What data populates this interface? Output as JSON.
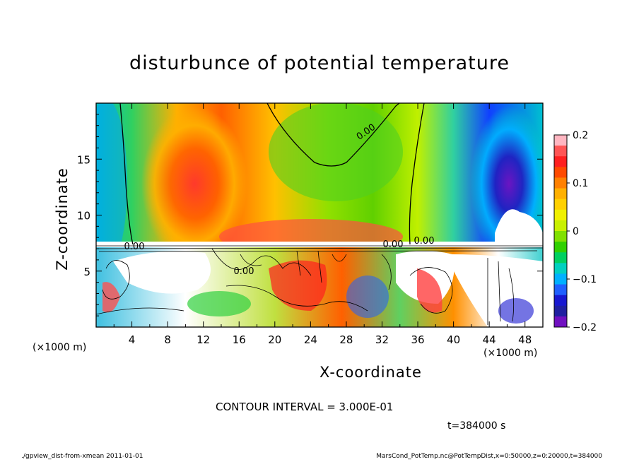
{
  "chart_data": {
    "type": "heatmap",
    "title": "disturbunce of potential temperature",
    "xlabel": "X-coordinate",
    "ylabel": "Z-coordinate",
    "x_unit_left": "(×1000 m)",
    "x_unit_right": "(×1000 m)",
    "xlim": [
      0,
      50
    ],
    "ylim": [
      0,
      20
    ],
    "xticks": [
      4,
      8,
      12,
      16,
      20,
      24,
      28,
      32,
      36,
      40,
      44,
      48
    ],
    "xtick_labels": [
      "4",
      "8",
      "12",
      "16",
      "20",
      "24",
      "28",
      "32",
      "36",
      "40",
      "44",
      "48"
    ],
    "yticks": [
      5,
      10,
      15
    ],
    "ytick_labels": [
      "5",
      "10",
      "15"
    ],
    "colorbar": {
      "range": [
        -0.2,
        0.2
      ],
      "ticks": [
        0.2,
        0.1,
        0,
        -0.1,
        -0.2
      ],
      "tick_labels": [
        "0.2",
        "0.1",
        "0",
        "−0.1",
        "−0.2"
      ],
      "colors": [
        "#ffb6c1",
        "#ff5555",
        "#ff2020",
        "#ff4a00",
        "#ff8000",
        "#ffb000",
        "#ffd000",
        "#f0f000",
        "#c8f000",
        "#80e000",
        "#30d000",
        "#00d060",
        "#00d0c0",
        "#00b0ff",
        "#2060ff",
        "#1818d0",
        "#2020a0",
        "#7010c0"
      ]
    },
    "contour_labels": [
      "0.00",
      "0.00",
      "0.00",
      "0.00",
      "0.00"
    ],
    "contour_interval": "CONTOUR INTERVAL = 3.000E-01",
    "time": "t=384000 s"
  },
  "footer": {
    "left": "./gpview_dist-from-xmean  2011-01-01",
    "right": "MarsCond_PotTemp.nc@PotTempDist,x=0:50000,z=0:20000,t=384000"
  }
}
